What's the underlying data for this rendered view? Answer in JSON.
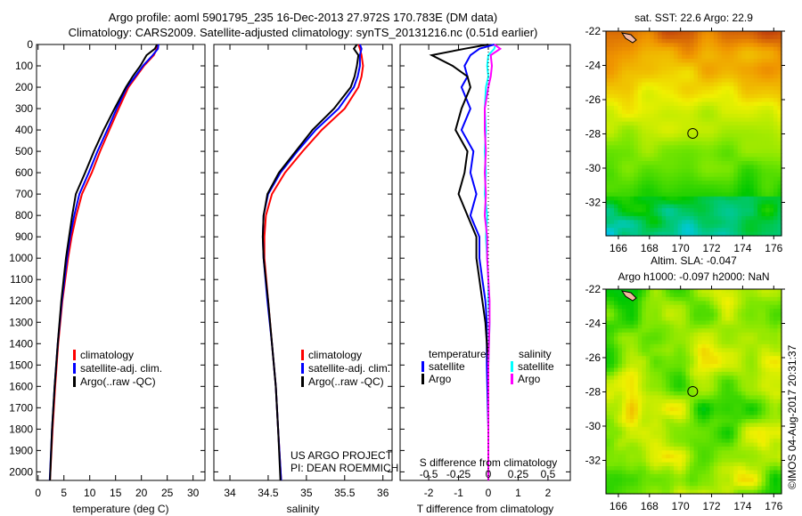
{
  "header": {
    "line1": "Argo profile: aoml 5901795_235 16-Dec-2013 27.972S 170.783E (DM data)",
    "line2": "Climatology: CARS2009. Satellite-adjusted climatology: synTS_20131216.nc (0.51d earlier)"
  },
  "colors": {
    "climatology": "#ff0000",
    "satellite": "#0000ff",
    "argo": "#000000",
    "sal_satellite": "#00ffff",
    "sal_argo": "#ff00ff"
  },
  "chart_data": [
    {
      "type": "line",
      "id": "temperature",
      "xlabel": "temperature (deg C)",
      "ylabel": "",
      "xlim": [
        -0.3,
        32.3
      ],
      "ylim": [
        2040,
        0
      ],
      "xticks": [
        "0",
        "5",
        "10",
        "15",
        "20",
        "25",
        "30"
      ],
      "yticks": [
        "0",
        "100",
        "200",
        "300",
        "400",
        "500",
        "600",
        "700",
        "800",
        "900",
        "1000",
        "1100",
        "1200",
        "1300",
        "1400",
        "1500",
        "1600",
        "1700",
        "1800",
        "1900",
        "2000"
      ],
      "legend": [
        "climatology",
        "satellite-adj. clim.",
        "Argo(..raw -QC)"
      ],
      "depth": [
        0,
        20,
        50,
        100,
        150,
        200,
        300,
        400,
        500,
        600,
        700,
        800,
        900,
        1000,
        1200,
        1400,
        1600,
        1800,
        2040
      ],
      "series": [
        {
          "name": "climatology",
          "values": [
            23,
            23,
            22.4,
            20.5,
            19,
            17.5,
            15.6,
            13.8,
            12,
            10.4,
            8.5,
            7.4,
            6.5,
            5.8,
            4.7,
            3.9,
            3.3,
            2.8,
            2.3
          ]
        },
        {
          "name": "satellite-adj. clim.",
          "values": [
            23.3,
            23.2,
            22.2,
            20.3,
            18.8,
            17.2,
            15.2,
            13.4,
            11.5,
            9.8,
            8,
            7,
            6.2,
            5.6,
            4.6,
            3.8,
            3.2,
            2.7,
            2.25
          ]
        },
        {
          "name": "Argo(..raw -QC)",
          "values": [
            23,
            22.6,
            21,
            19.8,
            18.3,
            17,
            14.8,
            12.7,
            10.8,
            9.1,
            7.3,
            6.6,
            6,
            5.4,
            4.5,
            3.8,
            3.2,
            2.7,
            2.3
          ]
        }
      ]
    },
    {
      "type": "line",
      "id": "salinity",
      "xlabel": "salinity",
      "xlim": [
        33.79,
        36.12
      ],
      "ylim": [
        2040,
        0
      ],
      "xticks": [
        "34",
        "34.5",
        "35",
        "35.5",
        "36"
      ],
      "legend": [
        "climatology",
        "satellite-adj. clim.",
        "Argo(..raw -QC)"
      ],
      "annotation": [
        "US ARGO PROJECT",
        "PI: DEAN ROEMMICH"
      ],
      "depth": [
        0,
        20,
        50,
        100,
        150,
        200,
        300,
        400,
        500,
        600,
        700,
        800,
        900,
        1000,
        1200,
        1400,
        1600,
        1800,
        2040
      ],
      "series": [
        {
          "name": "climatology",
          "values": [
            35.68,
            35.7,
            35.72,
            35.74,
            35.72,
            35.68,
            35.5,
            35.2,
            34.95,
            34.72,
            34.55,
            34.47,
            34.45,
            34.45,
            34.5,
            34.55,
            34.6,
            34.63,
            34.67
          ]
        },
        {
          "name": "satellite-adj. clim.",
          "values": [
            35.7,
            35.72,
            35.7,
            35.7,
            35.67,
            35.62,
            35.42,
            35.12,
            34.88,
            34.66,
            34.5,
            34.44,
            34.43,
            34.44,
            34.49,
            34.55,
            34.6,
            34.63,
            34.67
          ]
        },
        {
          "name": "Argo(..raw -QC)",
          "values": [
            35.66,
            35.62,
            35.68,
            35.66,
            35.63,
            35.58,
            35.36,
            35.08,
            34.86,
            34.64,
            34.49,
            34.44,
            34.43,
            34.44,
            34.5,
            34.55,
            34.6,
            34.63,
            34.66
          ]
        }
      ]
    },
    {
      "type": "line",
      "id": "differences",
      "xlabel": "T difference from climatology",
      "x2label": "S difference from climatology",
      "xlim": [
        -2.96,
        2.75
      ],
      "ylim": [
        2040,
        0
      ],
      "xticks": [
        "-2",
        "-1",
        "0",
        "1",
        "2"
      ],
      "x2ticks": [
        "-0.5",
        "-0.25",
        "0",
        "0.25",
        "0.5"
      ],
      "legend_titles": [
        "temperature",
        "salinity"
      ],
      "legend": [
        "satellite",
        "Argo",
        "satellite",
        "Argo"
      ],
      "depth": [
        0,
        20,
        50,
        100,
        150,
        200,
        300,
        400,
        500,
        600,
        700,
        800,
        900,
        1000,
        1100,
        1200,
        1300,
        1500,
        1800,
        2040
      ],
      "series": [
        {
          "name": "T satellite",
          "values": [
            0.2,
            -0.3,
            -0.6,
            -0.8,
            -0.7,
            -0.9,
            -0.6,
            -0.9,
            -0.5,
            -0.6,
            -0.4,
            -0.6,
            -0.3,
            -0.3,
            -0.2,
            -0.1,
            -0.05,
            -0.05,
            0,
            0
          ]
        },
        {
          "name": "T Argo",
          "values": [
            0,
            -0.8,
            -1.9,
            -1.2,
            -0.7,
            -0.6,
            -0.9,
            -1.1,
            -0.7,
            -0.8,
            -1.0,
            -0.7,
            -0.4,
            -0.4,
            -0.3,
            -0.2,
            -0.1,
            0,
            0,
            0
          ]
        },
        {
          "name": "S satellite",
          "values": [
            0.06,
            0.05,
            0.0,
            -0.01,
            0.0,
            -0.02,
            -0.03,
            -0.02,
            -0.03,
            -0.02,
            -0.03,
            -0.01,
            -0.02,
            -0.01,
            0,
            0,
            0.01,
            0,
            0,
            0
          ]
        },
        {
          "name": "S Argo",
          "values": [
            0.05,
            0.1,
            0.02,
            0.03,
            0.02,
            0.0,
            -0.03,
            -0.03,
            -0.02,
            -0.03,
            -0.02,
            -0.03,
            -0.01,
            -0.01,
            0,
            0.01,
            0.01,
            0,
            0,
            0
          ]
        }
      ]
    },
    {
      "type": "heatmap",
      "id": "sst-map",
      "title": "sat. SST: 22.6  Argo: 22.9",
      "xticks": [
        "166",
        "168",
        "170",
        "172",
        "174",
        "176"
      ],
      "yticks": [
        "-22",
        "-24",
        "-26",
        "-28",
        "-30",
        "-32"
      ],
      "xlim": [
        165.2,
        176.5
      ],
      "ylim": [
        -33.95,
        -22
      ],
      "marker": [
        170.783,
        -27.972
      ]
    },
    {
      "type": "heatmap",
      "id": "sla-map",
      "title": "Altim. SLA: -0.047",
      "subtitle": "Argo h1000: -0.097 h2000: NaN",
      "xticks": [
        "166",
        "168",
        "170",
        "172",
        "174",
        "176"
      ],
      "yticks": [
        "-22",
        "-24",
        "-26",
        "-28",
        "-30",
        "-32"
      ],
      "xlim": [
        165.2,
        176.5
      ],
      "ylim": [
        -33.95,
        -22
      ],
      "marker": [
        170.783,
        -27.972
      ]
    }
  ],
  "credit": "©IMOS 04-Aug-2017 20:31:37"
}
